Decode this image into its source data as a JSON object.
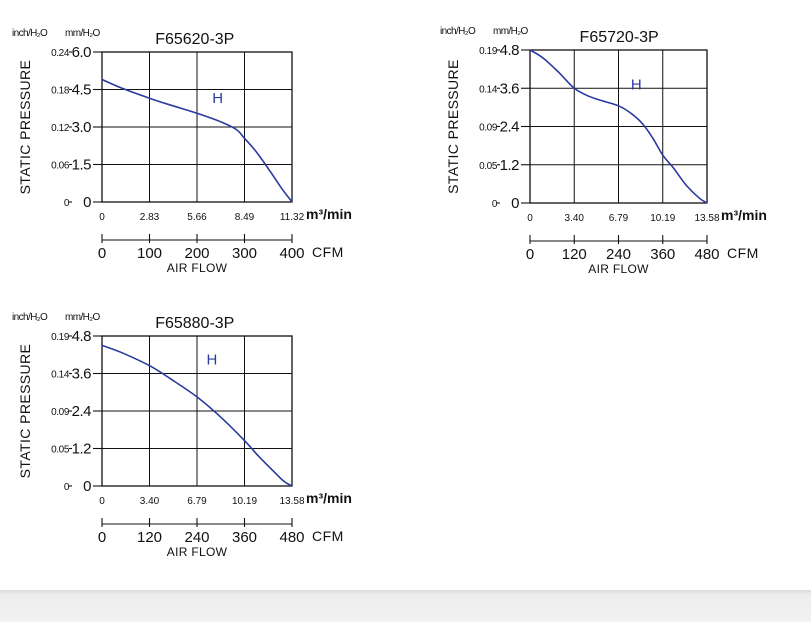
{
  "colors": {
    "curve": "#2b3a9e",
    "axis": "#111111",
    "background": "#ffffff",
    "bottom_band": "#ececec"
  },
  "chart_data": [
    {
      "type": "line",
      "title": "F65620-3P",
      "ylabel": "STATIC PRESSURE",
      "xlabel": "AIR FLOW",
      "y_unit_inch": "inch/H₂O",
      "y_unit_mm": "mm/H₂O",
      "x_unit_m3": "m³/min",
      "x_unit_cfm": "CFM",
      "ylim": [
        0,
        6.0
      ],
      "xlim": [
        0,
        11.32
      ],
      "grid": true,
      "y_ticks_mm": [
        "0",
        "1.5",
        "3.0",
        "4.5",
        "6.0"
      ],
      "y_ticks_inch": [
        "0",
        "0.06",
        "0.12",
        "0.18",
        "0.24"
      ],
      "x_ticks_m3": [
        "0",
        "2.83",
        "5.66",
        "8.49",
        "11.32"
      ],
      "x_ticks_cfm": [
        "0",
        "100",
        "200",
        "300",
        "400"
      ],
      "series": [
        {
          "name": "H",
          "x": [
            0,
            1.2,
            2.83,
            4.2,
            5.66,
            7.1,
            8.0,
            8.49,
            9.2,
            10.0,
            10.7,
            11.32
          ],
          "y": [
            4.9,
            4.55,
            4.15,
            3.85,
            3.55,
            3.2,
            2.9,
            2.55,
            2.0,
            1.25,
            0.55,
            0.0
          ]
        }
      ]
    },
    {
      "type": "line",
      "title": "F65720-3P",
      "ylabel": "STATIC PRESSURE",
      "xlabel": "AIR FLOW",
      "y_unit_inch": "inch/H₂O",
      "y_unit_mm": "mm/H₂O",
      "x_unit_m3": "m³/min",
      "x_unit_cfm": "CFM",
      "ylim": [
        0,
        4.8
      ],
      "xlim": [
        0,
        13.58
      ],
      "grid": true,
      "y_ticks_mm": [
        "0",
        "1.2",
        "2.4",
        "3.6",
        "4.8"
      ],
      "y_ticks_inch": [
        "0",
        "0.05",
        "0.09",
        "0.14",
        "0.19"
      ],
      "x_ticks_m3": [
        "0",
        "3.40",
        "6.79",
        "10.19",
        "13.58"
      ],
      "x_ticks_cfm": [
        "0",
        "120",
        "240",
        "360",
        "480"
      ],
      "series": [
        {
          "name": "H",
          "x": [
            0,
            1.0,
            2.2,
            3.4,
            4.5,
            5.6,
            6.79,
            7.8,
            8.6,
            9.4,
            10.19,
            11.0,
            12.0,
            13.0,
            13.58
          ],
          "y": [
            4.8,
            4.55,
            4.1,
            3.6,
            3.35,
            3.2,
            3.05,
            2.8,
            2.5,
            2.05,
            1.5,
            1.1,
            0.55,
            0.15,
            0.0
          ]
        }
      ]
    },
    {
      "type": "line",
      "title": "F65880-3P",
      "ylabel": "STATIC PRESSURE",
      "xlabel": "AIR FLOW",
      "y_unit_inch": "inch/H₂O",
      "y_unit_mm": "mm/H₂O",
      "x_unit_m3": "m³/min",
      "x_unit_cfm": "CFM",
      "ylim": [
        0,
        4.8
      ],
      "xlim": [
        0,
        13.58
      ],
      "grid": true,
      "y_ticks_mm": [
        "0",
        "1.2",
        "2.4",
        "3.6",
        "4.8"
      ],
      "y_ticks_inch": [
        "0",
        "0.05",
        "0.09",
        "0.14",
        "0.19"
      ],
      "x_ticks_m3": [
        "0",
        "3.40",
        "6.79",
        "10.19",
        "13.58"
      ],
      "x_ticks_cfm": [
        "0",
        "120",
        "240",
        "360",
        "480"
      ],
      "series": [
        {
          "name": "H",
          "x": [
            0,
            1.5,
            3.4,
            5.0,
            6.79,
            8.5,
            10.19,
            11.2,
            12.2,
            13.0,
            13.58
          ],
          "y": [
            4.5,
            4.25,
            3.85,
            3.4,
            2.85,
            2.2,
            1.45,
            0.95,
            0.5,
            0.15,
            0.0
          ]
        }
      ]
    }
  ]
}
